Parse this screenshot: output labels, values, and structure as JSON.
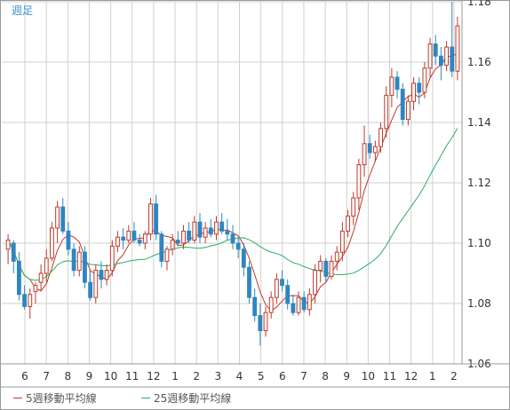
{
  "chart_data": {
    "type": "candlestick",
    "period_label": "週足",
    "x_tick_labels": [
      "6",
      "7",
      "8",
      "9",
      "10",
      "11",
      "12",
      "1",
      "2",
      "3",
      "4",
      "5",
      "6",
      "7",
      "8",
      "9",
      "10",
      "11",
      "12",
      "1",
      "2"
    ],
    "y_tick_labels": [
      "1.18",
      "1.16",
      "1.14",
      "1.12",
      "1.10",
      "1.08",
      "1.06"
    ],
    "ylim": [
      1.06,
      1.18
    ],
    "grid": true,
    "colors": {
      "up": "#c0392b",
      "down": "#2e86c1",
      "ma5": "#c0392b",
      "ma25": "#27ae60",
      "grid": "#cfcfcf",
      "axis": "#999999"
    },
    "candles": [
      [
        1.098,
        1.103,
        1.093,
        1.101
      ],
      [
        1.1,
        1.101,
        1.09,
        1.094
      ],
      [
        1.094,
        1.097,
        1.081,
        1.083
      ],
      [
        1.083,
        1.086,
        1.078,
        1.079
      ],
      [
        1.079,
        1.085,
        1.075,
        1.083
      ],
      [
        1.084,
        1.087,
        1.08,
        1.086
      ],
      [
        1.087,
        1.093,
        1.084,
        1.09
      ],
      [
        1.09,
        1.098,
        1.087,
        1.095
      ],
      [
        1.095,
        1.107,
        1.094,
        1.105
      ],
      [
        1.105,
        1.114,
        1.1,
        1.112
      ],
      [
        1.112,
        1.115,
        1.103,
        1.104
      ],
      [
        1.104,
        1.107,
        1.096,
        1.098
      ],
      [
        1.098,
        1.1,
        1.089,
        1.091
      ],
      [
        1.091,
        1.099,
        1.089,
        1.097
      ],
      [
        1.097,
        1.099,
        1.085,
        1.087
      ],
      [
        1.087,
        1.091,
        1.081,
        1.082
      ],
      [
        1.082,
        1.093,
        1.08,
        1.091
      ],
      [
        1.091,
        1.094,
        1.085,
        1.088
      ],
      [
        1.088,
        1.093,
        1.086,
        1.091
      ],
      [
        1.091,
        1.101,
        1.089,
        1.099
      ],
      [
        1.099,
        1.104,
        1.097,
        1.102
      ],
      [
        1.102,
        1.105,
        1.098,
        1.101
      ],
      [
        1.101,
        1.106,
        1.1,
        1.104
      ],
      [
        1.104,
        1.107,
        1.1,
        1.101
      ],
      [
        1.101,
        1.103,
        1.099,
        1.1
      ],
      [
        1.1,
        1.104,
        1.098,
        1.103
      ],
      [
        1.103,
        1.115,
        1.101,
        1.113
      ],
      [
        1.113,
        1.116,
        1.101,
        1.103
      ],
      [
        1.103,
        1.104,
        1.092,
        1.094
      ],
      [
        1.094,
        1.099,
        1.091,
        1.098
      ],
      [
        1.098,
        1.103,
        1.096,
        1.101
      ],
      [
        1.101,
        1.104,
        1.099,
        1.1
      ],
      [
        1.1,
        1.106,
        1.098,
        1.104
      ],
      [
        1.104,
        1.107,
        1.1,
        1.101
      ],
      [
        1.101,
        1.109,
        1.1,
        1.107
      ],
      [
        1.107,
        1.11,
        1.1,
        1.102
      ],
      [
        1.102,
        1.107,
        1.1,
        1.105
      ],
      [
        1.105,
        1.108,
        1.102,
        1.103
      ],
      [
        1.103,
        1.109,
        1.101,
        1.107
      ],
      [
        1.107,
        1.11,
        1.103,
        1.104
      ],
      [
        1.104,
        1.108,
        1.101,
        1.103
      ],
      [
        1.103,
        1.106,
        1.098,
        1.1
      ],
      [
        1.1,
        1.102,
        1.095,
        1.098
      ],
      [
        1.098,
        1.1,
        1.089,
        1.092
      ],
      [
        1.092,
        1.094,
        1.08,
        1.082
      ],
      [
        1.082,
        1.085,
        1.074,
        1.076
      ],
      [
        1.076,
        1.08,
        1.066,
        1.071
      ],
      [
        1.071,
        1.079,
        1.069,
        1.077
      ],
      [
        1.077,
        1.084,
        1.075,
        1.082
      ],
      [
        1.082,
        1.09,
        1.08,
        1.088
      ],
      [
        1.088,
        1.091,
        1.084,
        1.086
      ],
      [
        1.086,
        1.088,
        1.078,
        1.08
      ],
      [
        1.08,
        1.083,
        1.076,
        1.077
      ],
      [
        1.077,
        1.084,
        1.076,
        1.082
      ],
      [
        1.082,
        1.084,
        1.077,
        1.078
      ],
      [
        1.078,
        1.085,
        1.076,
        1.083
      ],
      [
        1.083,
        1.093,
        1.08,
        1.091
      ],
      [
        1.091,
        1.096,
        1.087,
        1.094
      ],
      [
        1.094,
        1.095,
        1.087,
        1.089
      ],
      [
        1.089,
        1.096,
        1.088,
        1.094
      ],
      [
        1.094,
        1.099,
        1.091,
        1.097
      ],
      [
        1.097,
        1.107,
        1.094,
        1.104
      ],
      [
        1.104,
        1.111,
        1.102,
        1.109
      ],
      [
        1.109,
        1.117,
        1.106,
        1.115
      ],
      [
        1.115,
        1.128,
        1.111,
        1.126
      ],
      [
        1.126,
        1.139,
        1.122,
        1.133
      ],
      [
        1.133,
        1.136,
        1.128,
        1.13
      ],
      [
        1.13,
        1.134,
        1.127,
        1.132
      ],
      [
        1.132,
        1.14,
        1.13,
        1.138
      ],
      [
        1.138,
        1.152,
        1.135,
        1.149
      ],
      [
        1.149,
        1.158,
        1.145,
        1.155
      ],
      [
        1.155,
        1.157,
        1.148,
        1.151
      ],
      [
        1.151,
        1.153,
        1.139,
        1.141
      ],
      [
        1.141,
        1.149,
        1.139,
        1.147
      ],
      [
        1.147,
        1.155,
        1.144,
        1.153
      ],
      [
        1.153,
        1.155,
        1.146,
        1.15
      ],
      [
        1.15,
        1.16,
        1.148,
        1.158
      ],
      [
        1.158,
        1.168,
        1.155,
        1.166
      ],
      [
        1.166,
        1.169,
        1.159,
        1.162
      ],
      [
        1.162,
        1.165,
        1.154,
        1.159
      ],
      [
        1.159,
        1.167,
        1.157,
        1.165
      ],
      [
        1.165,
        1.18,
        1.155,
        1.157
      ],
      [
        1.157,
        1.175,
        1.154,
        1.172
      ]
    ],
    "series": [
      {
        "name": "5週移動平均線",
        "kind": "sma",
        "period": 5
      },
      {
        "name": "25週移動平均線",
        "kind": "sma",
        "period": 25
      }
    ]
  }
}
